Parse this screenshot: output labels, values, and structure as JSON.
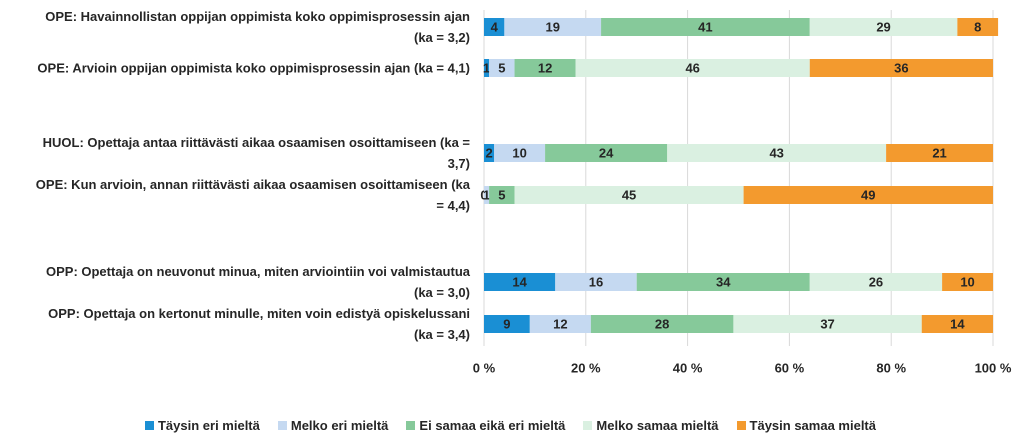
{
  "chart_data": {
    "type": "stacked_barh",
    "categories": [
      "OPE: Havainnollistan oppijan oppimista koko oppimisprosessin ajan (ka = 3,2)",
      "OPE: Arvioin oppijan oppimista koko oppimisprosessin ajan (ka = 4,1)",
      "HUOL: Opettaja antaa riittävästi aikaa osaamisen osoittamiseen (ka = 3,7)",
      "OPE: Kun arvioin, annan riittävästi aikaa osaamisen osoittamiseen (ka = 4,4)",
      "OPP: Opettaja on neuvonut minua, miten arviointiin voi valmistautua (ka = 3,0)",
      "OPP: Opettaja on kertonut minulle, miten voin edistyä opiskelussani (ka = 3,4)"
    ],
    "series": [
      {
        "name": "Täysin eri mieltä",
        "color": "#1a8fd4",
        "values": [
          4,
          1,
          2,
          0,
          14,
          9
        ]
      },
      {
        "name": "Melko eri mieltä",
        "color": "#c5d9f1",
        "values": [
          19,
          5,
          10,
          1,
          16,
          12
        ]
      },
      {
        "name": "Ei samaa eikä eri mieltä",
        "color": "#86c99a",
        "values": [
          41,
          12,
          24,
          5,
          34,
          28
        ]
      },
      {
        "name": "Melko samaa mieltä",
        "color": "#daf0e1",
        "values": [
          29,
          46,
          43,
          45,
          26,
          37
        ]
      },
      {
        "name": "Täysin samaa mieltä",
        "color": "#f39a2e",
        "values": [
          8,
          36,
          21,
          49,
          10,
          14
        ]
      }
    ],
    "xlim": [
      0,
      100
    ],
    "xticks": [
      {
        "value": 0,
        "label": "0 %"
      },
      {
        "value": 20,
        "label": "20 %"
      },
      {
        "value": 40,
        "label": "40 %"
      },
      {
        "value": 60,
        "label": "60 %"
      },
      {
        "value": 80,
        "label": "80 %"
      },
      {
        "value": 100,
        "label": "100 %"
      }
    ],
    "grid": true,
    "legend": "bottom"
  }
}
